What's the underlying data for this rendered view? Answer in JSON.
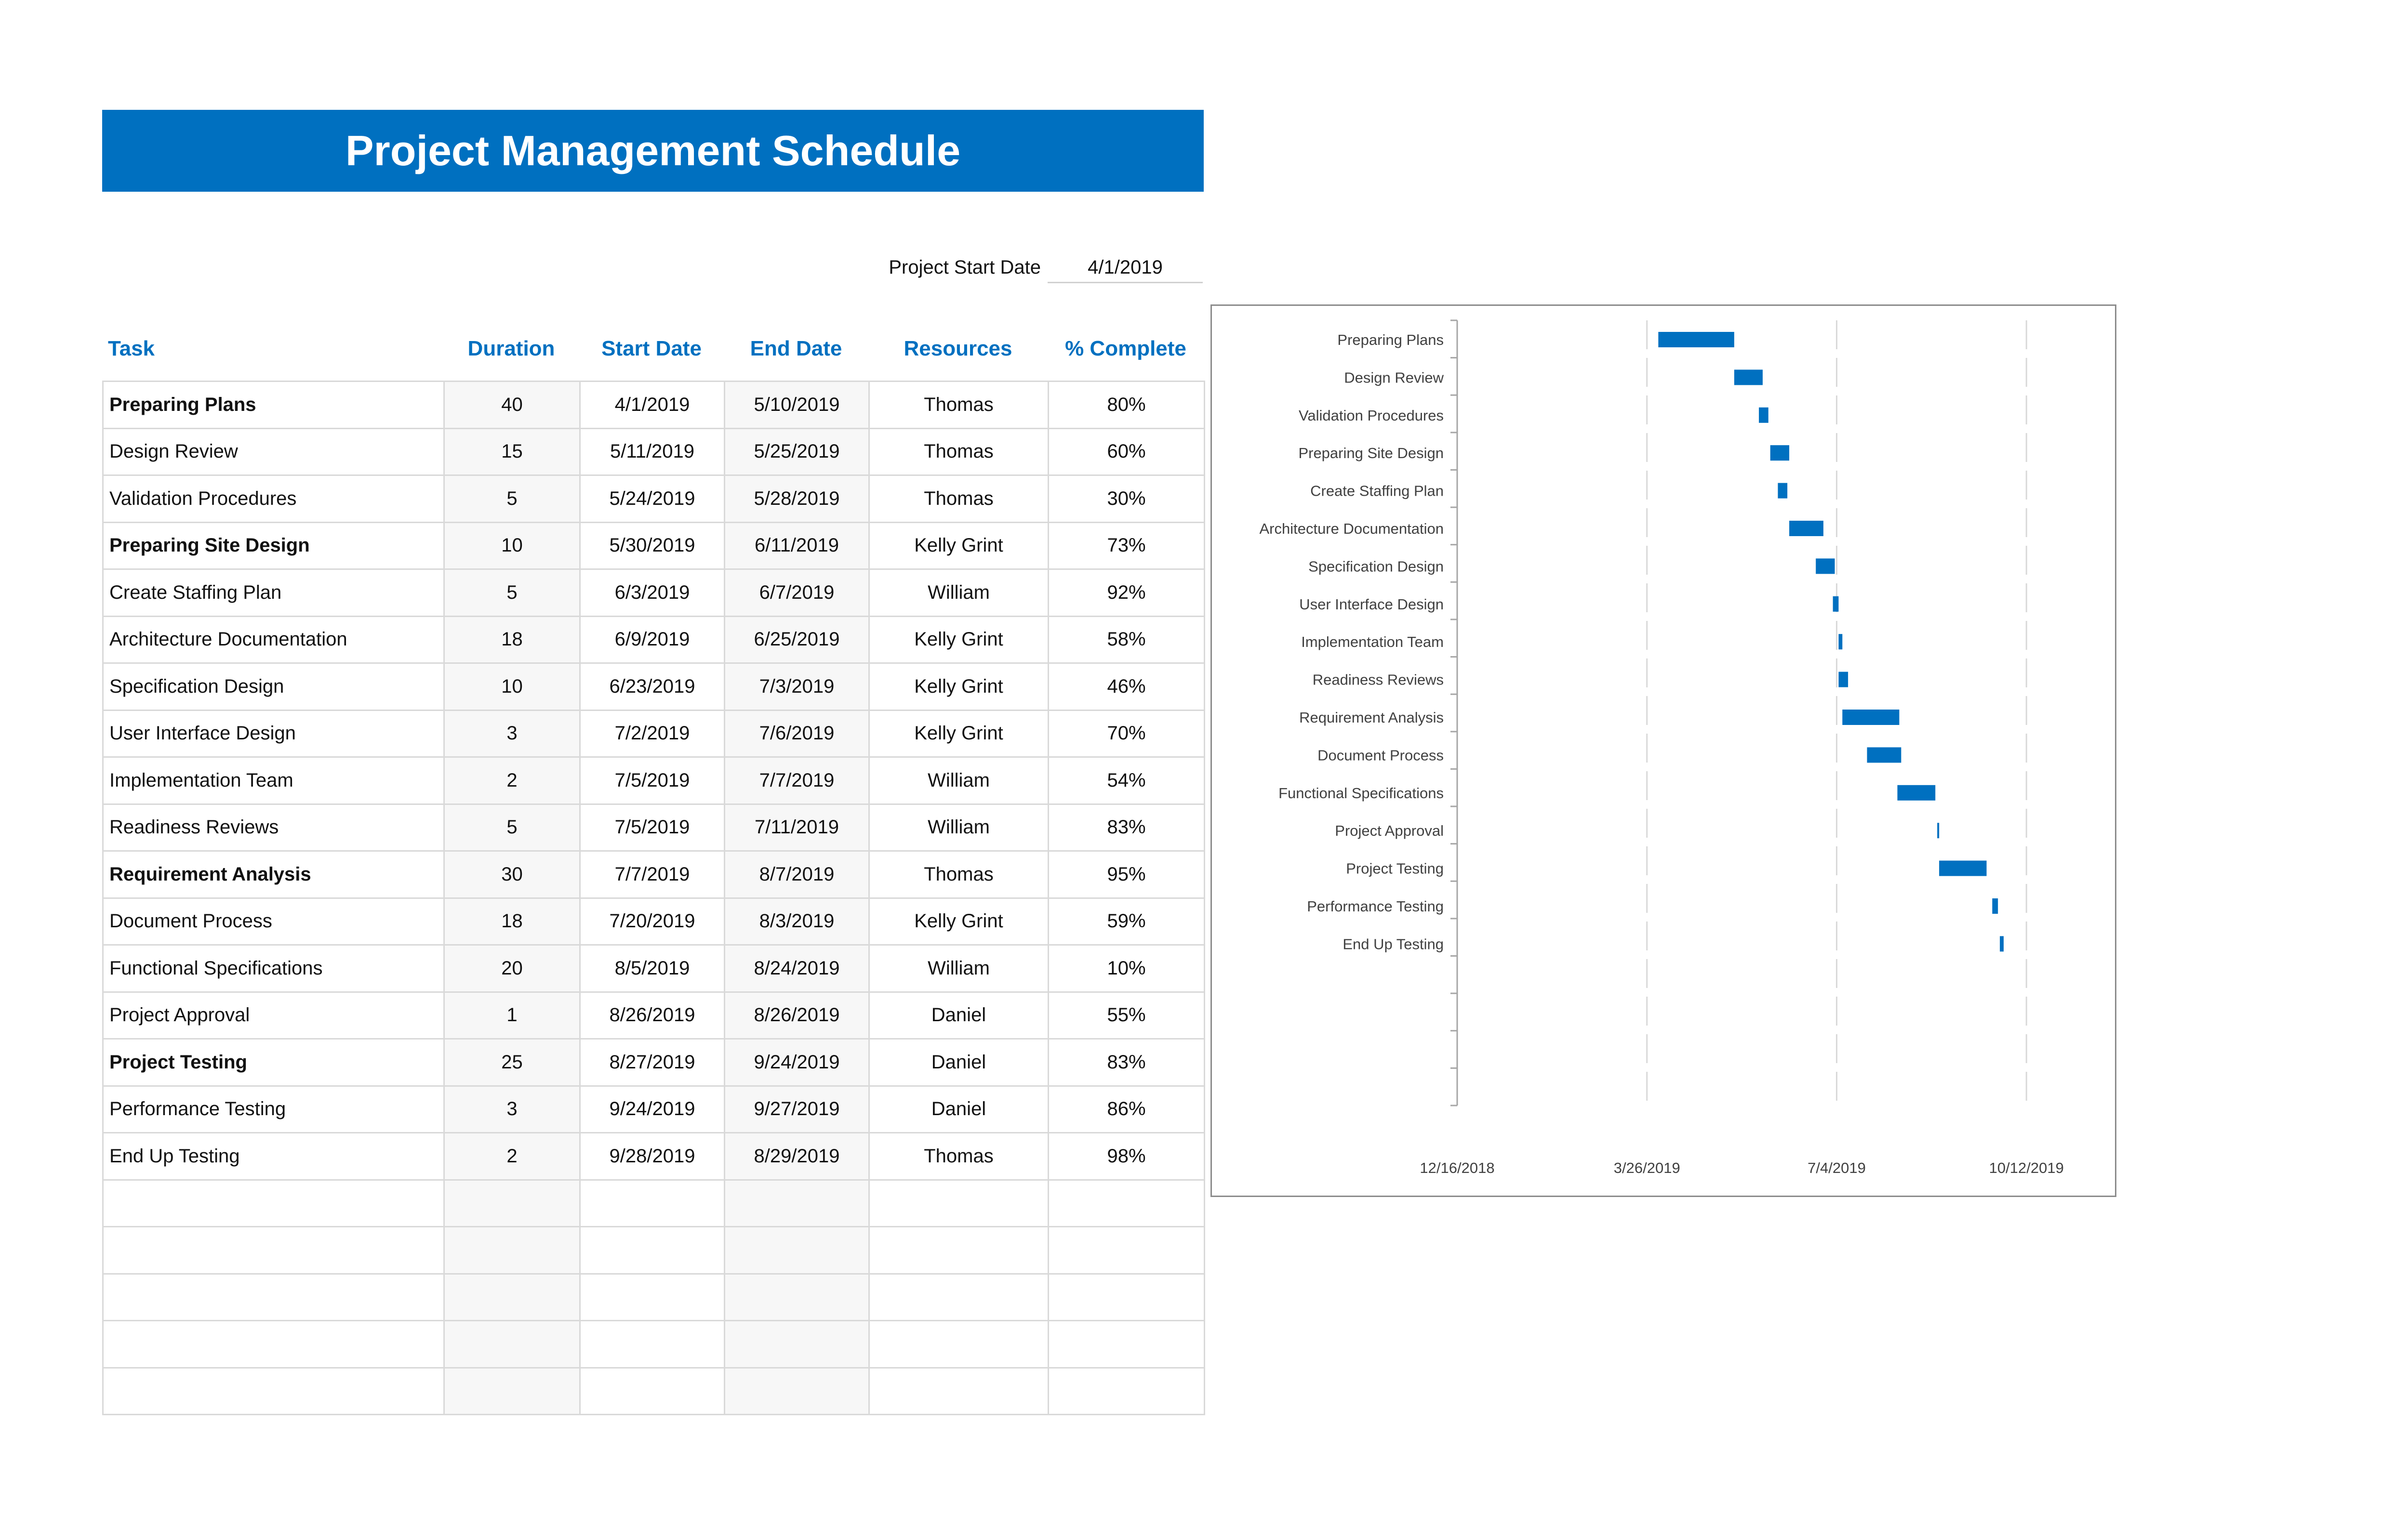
{
  "title": "Project Management Schedule",
  "project_start": {
    "label": "Project Start Date",
    "value": "4/1/2019"
  },
  "columns": [
    "Task",
    "Duration",
    "Start Date",
    "End Date",
    "Resources",
    "% Complete"
  ],
  "tasks": [
    {
      "task": "Preparing Plans",
      "duration": "40",
      "start": "4/1/2019",
      "end": "5/10/2019",
      "resource": "Thomas",
      "complete": "80%",
      "bold": true
    },
    {
      "task": "Design Review",
      "duration": "15",
      "start": "5/11/2019",
      "end": "5/25/2019",
      "resource": "Thomas",
      "complete": "60%",
      "bold": false
    },
    {
      "task": "Validation Procedures",
      "duration": "5",
      "start": "5/24/2019",
      "end": "5/28/2019",
      "resource": "Thomas",
      "complete": "30%",
      "bold": false
    },
    {
      "task": "Preparing Site Design",
      "duration": "10",
      "start": "5/30/2019",
      "end": "6/11/2019",
      "resource": "Kelly Grint",
      "complete": "73%",
      "bold": true
    },
    {
      "task": "Create Staffing Plan",
      "duration": "5",
      "start": "6/3/2019",
      "end": "6/7/2019",
      "resource": "William",
      "complete": "92%",
      "bold": false
    },
    {
      "task": "Architecture Documentation",
      "duration": "18",
      "start": "6/9/2019",
      "end": "6/25/2019",
      "resource": "Kelly Grint",
      "complete": "58%",
      "bold": false
    },
    {
      "task": "Specification Design",
      "duration": "10",
      "start": "6/23/2019",
      "end": "7/3/2019",
      "resource": "Kelly Grint",
      "complete": "46%",
      "bold": false
    },
    {
      "task": "User Interface Design",
      "duration": "3",
      "start": "7/2/2019",
      "end": "7/6/2019",
      "resource": "Kelly Grint",
      "complete": "70%",
      "bold": false
    },
    {
      "task": "Implementation Team",
      "duration": "2",
      "start": "7/5/2019",
      "end": "7/7/2019",
      "resource": "William",
      "complete": "54%",
      "bold": false
    },
    {
      "task": "Readiness Reviews",
      "duration": "5",
      "start": "7/5/2019",
      "end": "7/11/2019",
      "resource": "William",
      "complete": "83%",
      "bold": false
    },
    {
      "task": "Requirement Analysis",
      "duration": "30",
      "start": "7/7/2019",
      "end": "8/7/2019",
      "resource": "Thomas",
      "complete": "95%",
      "bold": true
    },
    {
      "task": "Document Process",
      "duration": "18",
      "start": "7/20/2019",
      "end": "8/3/2019",
      "resource": "Kelly Grint",
      "complete": "59%",
      "bold": false
    },
    {
      "task": "Functional Specifications",
      "duration": "20",
      "start": "8/5/2019",
      "end": "8/24/2019",
      "resource": "William",
      "complete": "10%",
      "bold": false
    },
    {
      "task": "Project Approval",
      "duration": "1",
      "start": "8/26/2019",
      "end": "8/26/2019",
      "resource": "Daniel",
      "complete": "55%",
      "bold": false
    },
    {
      "task": "Project Testing",
      "duration": "25",
      "start": "8/27/2019",
      "end": "9/24/2019",
      "resource": "Daniel",
      "complete": "83%",
      "bold": true
    },
    {
      "task": "Performance Testing",
      "duration": "3",
      "start": "9/24/2019",
      "end": "9/27/2019",
      "resource": "Daniel",
      "complete": "86%",
      "bold": false
    },
    {
      "task": "End Up Testing",
      "duration": "2",
      "start": "9/28/2019",
      "end": "8/29/2019",
      "resource": "Thomas",
      "complete": "98%",
      "bold": false
    }
  ],
  "empty_rows": 5,
  "accent_color": "#0070c0",
  "chart_data": {
    "type": "bar",
    "orientation": "horizontal",
    "categories": [
      "Preparing Plans",
      "Design Review",
      "Validation Procedures",
      "Preparing Site Design",
      "Create Staffing Plan",
      "Architecture Documentation",
      "Specification Design",
      "User Interface Design",
      "Implementation Team",
      "Readiness Reviews",
      "Requirement Analysis",
      "Document Process",
      "Functional Specifications",
      "Project Approval",
      "Project Testing",
      "Performance Testing",
      "End Up Testing"
    ],
    "series": [
      {
        "start": [
          "2019-04-01",
          "2019-05-11",
          "2019-05-24",
          "2019-05-30",
          "2019-06-03",
          "2019-06-09",
          "2019-06-23",
          "2019-07-02",
          "2019-07-05",
          "2019-07-05",
          "2019-07-07",
          "2019-07-20",
          "2019-08-05",
          "2019-08-26",
          "2019-08-27",
          "2019-09-24",
          "2019-09-28"
        ],
        "duration_days": [
          40,
          15,
          5,
          10,
          5,
          18,
          10,
          3,
          2,
          5,
          30,
          18,
          20,
          1,
          25,
          3,
          2
        ]
      }
    ],
    "x_ticks": [
      "12/16/2018",
      "3/26/2019",
      "7/4/2019",
      "10/12/2019"
    ],
    "xlim": [
      "2018-12-16",
      "2019-11-01"
    ],
    "grid": "vertical-dashed",
    "color": "#0070c0"
  }
}
